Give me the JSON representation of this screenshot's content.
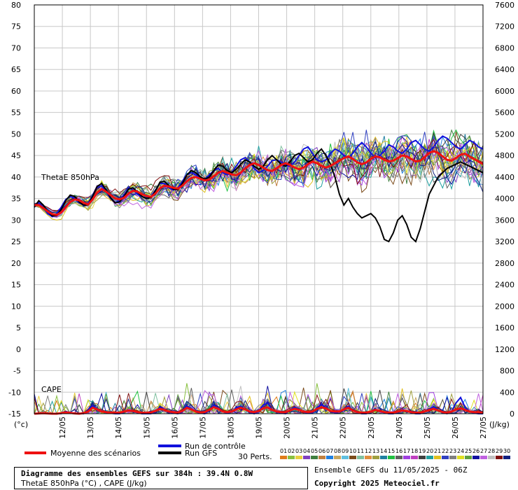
{
  "chart_data": {
    "type": "line",
    "title": "Diagramme des ensembles GEFS sur 384h : 39.4N 0.8W",
    "subtitle": "ThetaE 850hPa (°C) , CAPE (J/kg)",
    "run_info": "Ensemble GEFS du 11/05/2025 - 06Z",
    "copyright": "Copyright 2025 Meteociel.fr",
    "left_axis": {
      "unit": "(°c)",
      "ticks": [
        80,
        75,
        70,
        65,
        60,
        55,
        50,
        45,
        40,
        35,
        30,
        25,
        20,
        15,
        10,
        5,
        0,
        -5,
        -10,
        -15
      ],
      "ylim": [
        -15,
        80
      ]
    },
    "right_axis": {
      "unit": "(J/kg)",
      "ticks": [
        7600,
        7200,
        6800,
        6400,
        6000,
        5600,
        5200,
        4800,
        4400,
        4000,
        3600,
        3200,
        2800,
        2400,
        2000,
        1600,
        1200,
        800,
        400,
        0
      ]
    },
    "x_labels": [
      "12/05",
      "13/05",
      "14/05",
      "15/05",
      "16/05",
      "17/05",
      "18/05",
      "19/05",
      "20/05",
      "21/05",
      "22/05",
      "23/05",
      "24/05",
      "25/05",
      "26/05",
      "27/05"
    ],
    "annotations": {
      "thetae": "ThetaE 850hPa",
      "cape": "CAPE"
    },
    "legend": {
      "mean": "Moyenne des scénarios",
      "control": "Run de contrôle",
      "gfs": "Run GFS",
      "perts": "30 Perts.",
      "pert_numbers": [
        "01",
        "02",
        "03",
        "04",
        "05",
        "06",
        "07",
        "08",
        "09",
        "10",
        "11",
        "12",
        "13",
        "14",
        "15",
        "16",
        "17",
        "18",
        "19",
        "20",
        "21",
        "22",
        "23",
        "24",
        "25",
        "26",
        "27",
        "28",
        "29",
        "30"
      ]
    },
    "colors": {
      "mean": "#ee1111",
      "control": "#1111dd",
      "gfs": "#000000",
      "perts": [
        "#e07c1b",
        "#88c040",
        "#e8d040",
        "#8040c0",
        "#408040",
        "#c08040",
        "#2080e0",
        "#c8a860",
        "#60c0e0",
        "#7c4c1c",
        "#80c0a0",
        "#e09040",
        "#a0a040",
        "#2080a0",
        "#20c040",
        "#606060",
        "#a040e0",
        "#c040c0",
        "#404040",
        "#20a0a0",
        "#e0c020",
        "#3040c0",
        "#808080",
        "#e0e020",
        "#60a040",
        "#1010a0",
        "#c060e0",
        "#c0c0c0",
        "#801010",
        "#102080"
      ]
    },
    "series": [
      {
        "name": "Moyenne des scénarios",
        "y": [
          33.5,
          33.5,
          32.8,
          32.0,
          31.4,
          31.2,
          31.8,
          33.0,
          34.2,
          34.8,
          34.6,
          34.0,
          33.6,
          34.8,
          36.4,
          37.2,
          36.6,
          35.8,
          35.0,
          34.8,
          35.2,
          36.2,
          36.8,
          36.6,
          36.0,
          35.6,
          35.4,
          36.2,
          37.4,
          38.0,
          37.8,
          37.5,
          37.3,
          38.0,
          39.0,
          39.8,
          40.0,
          39.6,
          39.2,
          39.4,
          40.2,
          41.0,
          41.4,
          41.0,
          40.6,
          40.4,
          41.0,
          42.0,
          42.8,
          43.2,
          42.8,
          42.2,
          41.6,
          41.4,
          42.0,
          42.8,
          43.2,
          42.8,
          42.2,
          41.8,
          42.2,
          43.0,
          43.6,
          43.2,
          42.6,
          42.2,
          42.6,
          43.2,
          43.8,
          44.4,
          44.8,
          44.2,
          43.4,
          43.0,
          43.4,
          44.2,
          44.8,
          44.6,
          44.0,
          43.6,
          43.8,
          44.4,
          45.0,
          44.8,
          44.2,
          43.6,
          43.8,
          44.6,
          45.6,
          46.0,
          45.6,
          44.8,
          44.0,
          43.8,
          44.4,
          45.2,
          45.4,
          44.8,
          44.2,
          43.6,
          43.0
        ]
      },
      {
        "name": "Run de contrôle",
        "y": [
          33.0,
          34.0,
          33.0,
          31.5,
          30.8,
          31.5,
          33.0,
          34.8,
          35.5,
          35.0,
          34.0,
          33.5,
          33.8,
          35.8,
          37.5,
          38.0,
          36.5,
          35.0,
          34.0,
          34.5,
          35.8,
          37.5,
          37.0,
          36.0,
          35.5,
          35.0,
          35.5,
          37.0,
          38.5,
          38.5,
          37.5,
          37.0,
          37.5,
          39.0,
          40.5,
          41.0,
          40.5,
          39.8,
          39.5,
          40.5,
          41.5,
          42.0,
          41.0,
          40.5,
          41.0,
          42.5,
          44.0,
          44.5,
          43.5,
          42.0,
          41.0,
          41.5,
          42.5,
          43.8,
          44.0,
          43.5,
          42.8,
          42.5,
          43.5,
          45.0,
          46.5,
          47.0,
          45.5,
          44.0,
          43.5,
          44.0,
          45.5,
          46.5,
          46.0,
          45.0,
          44.5,
          45.5,
          47.0,
          48.0,
          47.0,
          45.5,
          44.5,
          45.0,
          46.0,
          47.5,
          47.0,
          46.0,
          45.5,
          46.5,
          48.0,
          48.5,
          47.5,
          46.5,
          46.0,
          47.0,
          48.5,
          49.5,
          49.0,
          48.0,
          47.0,
          46.5,
          47.5,
          48.5,
          48.0,
          47.0,
          46.5
        ]
      },
      {
        "name": "Run GFS",
        "y": [
          33.0,
          34.5,
          33.5,
          32.0,
          31.0,
          31.0,
          32.5,
          34.5,
          35.8,
          35.5,
          34.2,
          33.5,
          33.5,
          35.5,
          37.8,
          38.5,
          37.0,
          35.2,
          34.0,
          34.2,
          35.5,
          37.2,
          37.5,
          36.5,
          35.5,
          35.0,
          35.2,
          36.8,
          38.8,
          39.0,
          38.0,
          37.2,
          37.0,
          38.5,
          40.5,
          41.5,
          41.0,
          40.0,
          39.5,
          40.0,
          41.5,
          42.8,
          42.5,
          41.5,
          41.0,
          41.8,
          43.0,
          44.0,
          43.5,
          42.5,
          41.8,
          42.5,
          44.0,
          45.0,
          44.0,
          43.0,
          42.5,
          43.5,
          45.0,
          45.5,
          44.5,
          43.5,
          44.0,
          45.5,
          46.5,
          45.0,
          43.0,
          40.0,
          36.0,
          33.5,
          35.0,
          33.0,
          31.5,
          30.5,
          31.0,
          31.5,
          30.5,
          28.5,
          25.5,
          25.0,
          27.0,
          30.0,
          31.0,
          29.0,
          26.0,
          25.0,
          28.0,
          32.0,
          36.0,
          38.0,
          40.0,
          41.0,
          42.0,
          42.5,
          43.0,
          43.5,
          43.0,
          42.5,
          42.0,
          41.5,
          41.0
        ]
      }
    ],
    "cape_series": [
      {
        "name": "Moyenne des scénarios",
        "y": [
          0,
          5,
          10,
          5,
          0,
          0,
          10,
          25,
          15,
          5,
          0,
          10,
          40,
          110,
          80,
          40,
          30,
          20,
          15,
          20,
          40,
          60,
          50,
          30,
          20,
          15,
          25,
          55,
          90,
          70,
          40,
          30,
          20,
          50,
          110,
          80,
          40,
          25,
          30,
          70,
          120,
          90,
          40,
          30,
          40,
          80,
          110,
          80,
          40,
          30,
          50,
          100,
          120,
          70,
          40,
          30,
          30,
          60,
          90,
          70,
          40,
          30,
          40,
          90,
          120,
          100,
          50,
          40,
          40,
          80,
          110,
          60,
          30,
          20,
          20,
          40,
          70,
          50,
          30,
          20,
          20,
          40,
          60,
          50,
          30,
          20,
          20,
          40,
          70,
          90,
          60,
          30,
          20,
          40,
          80,
          100,
          70,
          40,
          30,
          30,
          20
        ]
      },
      {
        "name": "Run de contrôle",
        "y": [
          0,
          0,
          20,
          0,
          0,
          0,
          0,
          40,
          20,
          0,
          0,
          0,
          60,
          150,
          90,
          40,
          20,
          10,
          0,
          0,
          30,
          60,
          40,
          20,
          0,
          0,
          0,
          50,
          120,
          70,
          30,
          10,
          0,
          30,
          150,
          90,
          30,
          10,
          0,
          60,
          160,
          100,
          40,
          10,
          30,
          110,
          140,
          80,
          30,
          0,
          40,
          160,
          200,
          80,
          30,
          10,
          0,
          70,
          120,
          80,
          30,
          10,
          20,
          110,
          170,
          120,
          40,
          20,
          30,
          80,
          140,
          60,
          20,
          0,
          0,
          40,
          80,
          40,
          20,
          0,
          0,
          30,
          70,
          50,
          20,
          0,
          0,
          40,
          90,
          130,
          70,
          20,
          0,
          40,
          200,
          300,
          120,
          40,
          10,
          0,
          0
        ]
      }
    ]
  }
}
